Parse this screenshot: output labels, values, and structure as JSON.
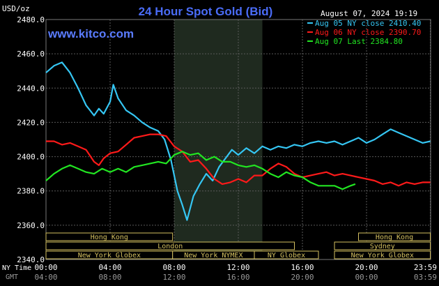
{
  "chart_data": {
    "type": "line",
    "title": "24 Hour Spot Gold (Bid)",
    "source": "www.kitco.com",
    "timestamp": "August 07, 2024 19:19",
    "ylabel": "USD/oz",
    "ylim": [
      2340,
      2480
    ],
    "yticks": [
      "2480.0",
      "2460.0",
      "2440.0",
      "2420.0",
      "2400.0",
      "2380.0",
      "2360.0",
      "2340.0"
    ],
    "xlim": [
      0,
      24
    ],
    "xticks_ny": [
      "00:00",
      "04:00",
      "08:00",
      "12:00",
      "16:00",
      "20:00",
      "23:59"
    ],
    "xticks_gmt": [
      "04:00",
      "08:00",
      "12:00",
      "16:00",
      "20:00",
      "00:00",
      "03:59"
    ],
    "xlabel_ny": "NY Time",
    "xlabel_gmt": "GMT",
    "grid": true,
    "legend_position": "top-right",
    "colors": {
      "background": "#000000",
      "grid": "#5a5a5a",
      "title": "#4a6cf7",
      "text": "#ffffff",
      "night_band": "#1f2a1f",
      "session": "#d4c060"
    },
    "night_band_hours": [
      8,
      13.5
    ],
    "series": [
      {
        "name": "Aug 05 NY close 2410.40",
        "color": "#35c6f3",
        "points": [
          [
            0,
            2449
          ],
          [
            0.5,
            2453
          ],
          [
            1,
            2455
          ],
          [
            1.5,
            2449
          ],
          [
            2,
            2440
          ],
          [
            2.5,
            2430
          ],
          [
            3,
            2424
          ],
          [
            3.3,
            2428
          ],
          [
            3.6,
            2425
          ],
          [
            4,
            2432
          ],
          [
            4.2,
            2442
          ],
          [
            4.5,
            2434
          ],
          [
            5,
            2427
          ],
          [
            5.5,
            2424
          ],
          [
            6,
            2420
          ],
          [
            6.5,
            2417
          ],
          [
            7,
            2415
          ],
          [
            7.4,
            2410
          ],
          [
            7.8,
            2398
          ],
          [
            8.2,
            2380
          ],
          [
            8.5,
            2372
          ],
          [
            8.8,
            2363
          ],
          [
            9.2,
            2377
          ],
          [
            9.6,
            2384
          ],
          [
            10,
            2390
          ],
          [
            10.4,
            2386
          ],
          [
            10.8,
            2394
          ],
          [
            11.2,
            2399
          ],
          [
            11.6,
            2404
          ],
          [
            12,
            2401
          ],
          [
            12.5,
            2405
          ],
          [
            13,
            2402
          ],
          [
            13.5,
            2406
          ],
          [
            14,
            2404
          ],
          [
            14.5,
            2406
          ],
          [
            15,
            2405
          ],
          [
            15.5,
            2407
          ],
          [
            16,
            2406
          ],
          [
            16.5,
            2408
          ],
          [
            17,
            2409
          ],
          [
            17.5,
            2408
          ],
          [
            18,
            2409
          ],
          [
            18.5,
            2407
          ],
          [
            19,
            2409
          ],
          [
            19.5,
            2411
          ],
          [
            20,
            2408
          ],
          [
            20.5,
            2410
          ],
          [
            21,
            2413
          ],
          [
            21.5,
            2416
          ],
          [
            22,
            2414
          ],
          [
            22.5,
            2412
          ],
          [
            23,
            2410
          ],
          [
            23.5,
            2408
          ],
          [
            23.98,
            2409
          ]
        ]
      },
      {
        "name": "Aug 06 NY close 2390.70",
        "color": "#ff1a1a",
        "points": [
          [
            0,
            2409
          ],
          [
            0.5,
            2409
          ],
          [
            1,
            2407
          ],
          [
            1.5,
            2408
          ],
          [
            2,
            2406
          ],
          [
            2.5,
            2404
          ],
          [
            3,
            2397
          ],
          [
            3.3,
            2395
          ],
          [
            3.6,
            2399
          ],
          [
            4,
            2402
          ],
          [
            4.5,
            2403
          ],
          [
            5,
            2407
          ],
          [
            5.5,
            2411
          ],
          [
            6,
            2412
          ],
          [
            6.5,
            2413
          ],
          [
            7,
            2413
          ],
          [
            7.5,
            2412
          ],
          [
            8,
            2406
          ],
          [
            8.5,
            2403
          ],
          [
            9,
            2397
          ],
          [
            9.5,
            2398
          ],
          [
            10,
            2393
          ],
          [
            10.5,
            2387
          ],
          [
            11,
            2384
          ],
          [
            11.5,
            2385
          ],
          [
            12,
            2387
          ],
          [
            12.5,
            2385
          ],
          [
            13,
            2389
          ],
          [
            13.5,
            2389
          ],
          [
            14,
            2393
          ],
          [
            14.5,
            2396
          ],
          [
            15,
            2394
          ],
          [
            15.5,
            2390
          ],
          [
            16,
            2388
          ],
          [
            16.5,
            2389
          ],
          [
            17,
            2390
          ],
          [
            17.5,
            2391
          ],
          [
            18,
            2389
          ],
          [
            18.5,
            2390
          ],
          [
            19,
            2389
          ],
          [
            19.5,
            2388
          ],
          [
            20,
            2387
          ],
          [
            20.5,
            2386
          ],
          [
            21,
            2384
          ],
          [
            21.5,
            2385
          ],
          [
            22,
            2383
          ],
          [
            22.5,
            2385
          ],
          [
            23,
            2384
          ],
          [
            23.5,
            2385
          ],
          [
            23.98,
            2385
          ]
        ]
      },
      {
        "name": "Aug 07 Last 2384.80",
        "color": "#22e622",
        "points": [
          [
            0,
            2386
          ],
          [
            0.5,
            2390
          ],
          [
            1,
            2393
          ],
          [
            1.5,
            2395
          ],
          [
            2,
            2393
          ],
          [
            2.5,
            2391
          ],
          [
            3,
            2390
          ],
          [
            3.5,
            2393
          ],
          [
            4,
            2391
          ],
          [
            4.5,
            2393
          ],
          [
            5,
            2391
          ],
          [
            5.5,
            2394
          ],
          [
            6,
            2395
          ],
          [
            6.5,
            2396
          ],
          [
            7,
            2397
          ],
          [
            7.5,
            2396
          ],
          [
            8,
            2401
          ],
          [
            8.5,
            2403
          ],
          [
            9,
            2401
          ],
          [
            9.5,
            2402
          ],
          [
            10,
            2398
          ],
          [
            10.5,
            2400
          ],
          [
            11,
            2397
          ],
          [
            11.5,
            2397
          ],
          [
            12,
            2395
          ],
          [
            12.5,
            2394
          ],
          [
            13,
            2395
          ],
          [
            13.5,
            2393
          ],
          [
            14,
            2390
          ],
          [
            14.5,
            2388
          ],
          [
            15,
            2391
          ],
          [
            15.5,
            2389
          ],
          [
            16,
            2388
          ],
          [
            16.5,
            2385
          ],
          [
            17,
            2383
          ],
          [
            17.5,
            2383
          ],
          [
            18,
            2383
          ],
          [
            18.5,
            2381
          ],
          [
            19,
            2383
          ],
          [
            19.3,
            2384
          ]
        ]
      }
    ],
    "sessions": [
      {
        "label": "Hong Kong",
        "start": 0,
        "end": 7.9
      },
      {
        "label": "London",
        "start": 0,
        "end": 15.5
      },
      {
        "label": "New York Globex",
        "start": 0,
        "end": 7.9
      },
      {
        "label": "New York NYMEX",
        "start": 7.9,
        "end": 13.0
      },
      {
        "label": "NY Globex",
        "start": 13.0,
        "end": 17.0
      },
      {
        "label": "Hong Kong",
        "start": 19.5,
        "end": 23.98
      },
      {
        "label": "Sydney",
        "start": 18.0,
        "end": 23.98
      },
      {
        "label": "New York Globex",
        "start": 18.0,
        "end": 23.98
      }
    ]
  }
}
